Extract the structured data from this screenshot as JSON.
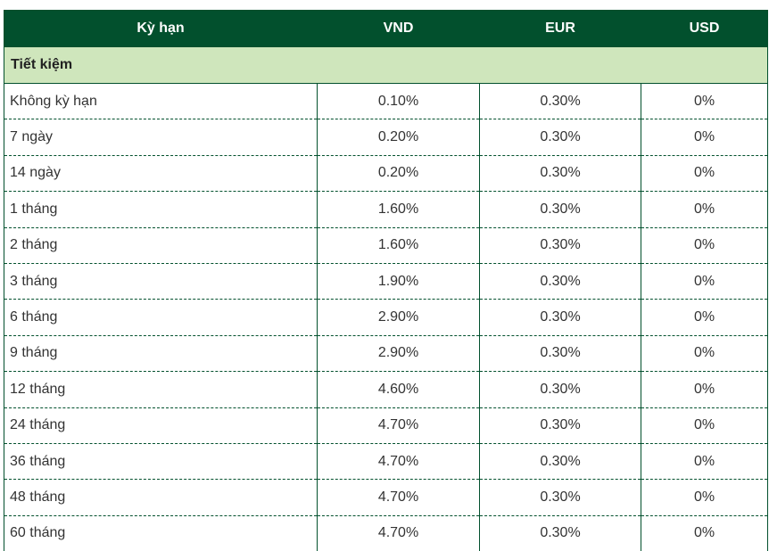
{
  "table": {
    "headers": [
      "Kỳ hạn",
      "VND",
      "EUR",
      "USD"
    ],
    "section_label": "Tiết kiệm",
    "rows": [
      {
        "term": "Không kỳ hạn",
        "vnd": "0.10%",
        "eur": "0.30%",
        "usd": "0%"
      },
      {
        "term": "7 ngày",
        "vnd": "0.20%",
        "eur": "0.30%",
        "usd": "0%"
      },
      {
        "term": "14 ngày",
        "vnd": "0.20%",
        "eur": "0.30%",
        "usd": "0%"
      },
      {
        "term": "1 tháng",
        "vnd": "1.60%",
        "eur": "0.30%",
        "usd": "0%"
      },
      {
        "term": "2 tháng",
        "vnd": "1.60%",
        "eur": "0.30%",
        "usd": "0%"
      },
      {
        "term": "3 tháng",
        "vnd": "1.90%",
        "eur": "0.30%",
        "usd": "0%"
      },
      {
        "term": "6 tháng",
        "vnd": "2.90%",
        "eur": "0.30%",
        "usd": "0%"
      },
      {
        "term": "9 tháng",
        "vnd": "2.90%",
        "eur": "0.30%",
        "usd": "0%"
      },
      {
        "term": "12 tháng",
        "vnd": "4.60%",
        "eur": "0.30%",
        "usd": "0%"
      },
      {
        "term": "24 tháng",
        "vnd": "4.70%",
        "eur": "0.30%",
        "usd": "0%"
      },
      {
        "term": "36 tháng",
        "vnd": "4.70%",
        "eur": "0.30%",
        "usd": "0%"
      },
      {
        "term": "48 tháng",
        "vnd": "4.70%",
        "eur": "0.30%",
        "usd": "0%"
      },
      {
        "term": "60 tháng",
        "vnd": "4.70%",
        "eur": "0.30%",
        "usd": "0%"
      }
    ]
  },
  "colors": {
    "header_bg": "#02502d",
    "section_bg": "#cfe6bc",
    "border": "#02502d"
  }
}
